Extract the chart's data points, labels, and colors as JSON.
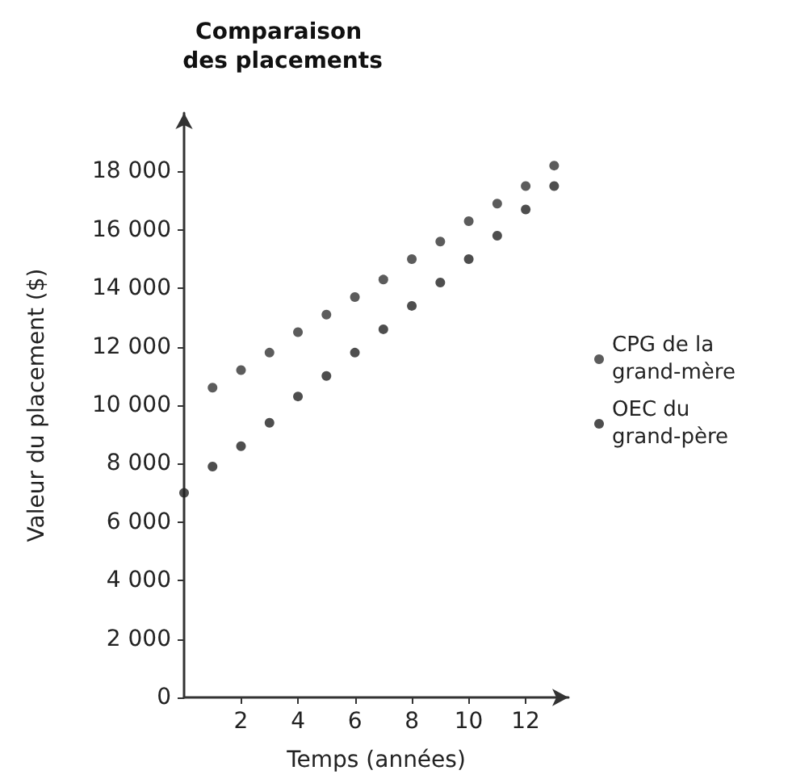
{
  "chart_data": {
    "type": "scatter",
    "title": "Comparaison des placements",
    "xlabel": "Temps (années)",
    "ylabel": "Valeur du placement ($)",
    "series": [
      {
        "name": "CPG de la grand-mère",
        "color": "#333333",
        "x": [
          1,
          2,
          3,
          4,
          5,
          6,
          7,
          8,
          9,
          10,
          11,
          12,
          13
        ],
        "values": [
          10600,
          11200,
          11800,
          12500,
          13100,
          13700,
          14300,
          15000,
          15600,
          16300,
          16900,
          17500,
          18200
        ]
      },
      {
        "name": "OEC du grand-père",
        "color": "#222222",
        "x": [
          0,
          1,
          2,
          3,
          4,
          5,
          6,
          7,
          8,
          9,
          10,
          11,
          12,
          13
        ],
        "values": [
          7000,
          7900,
          8600,
          9400,
          10300,
          11000,
          11800,
          12600,
          13400,
          14200,
          15000,
          15800,
          16700,
          17500
        ]
      }
    ],
    "xlim": [
      0,
      13.5
    ],
    "xticks": [
      2,
      4,
      6,
      8,
      10,
      12
    ],
    "ylim": [
      0,
      20000
    ],
    "yticks": [
      0,
      {
        "value": 2000,
        "label": "2 000"
      },
      {
        "value": 4000,
        "label": "4 000"
      },
      {
        "value": 6000,
        "label": "6 000"
      },
      {
        "value": 8000,
        "label": "8 000"
      },
      {
        "value": 10000,
        "label": "10 000"
      },
      {
        "value": 12000,
        "label": "12 000"
      },
      {
        "value": 14000,
        "label": "14 000"
      },
      {
        "value": 16000,
        "label": "16 000"
      },
      {
        "value": 18000,
        "label": "18 000"
      }
    ],
    "grid": false,
    "legend": "right",
    "marker": "circle"
  }
}
